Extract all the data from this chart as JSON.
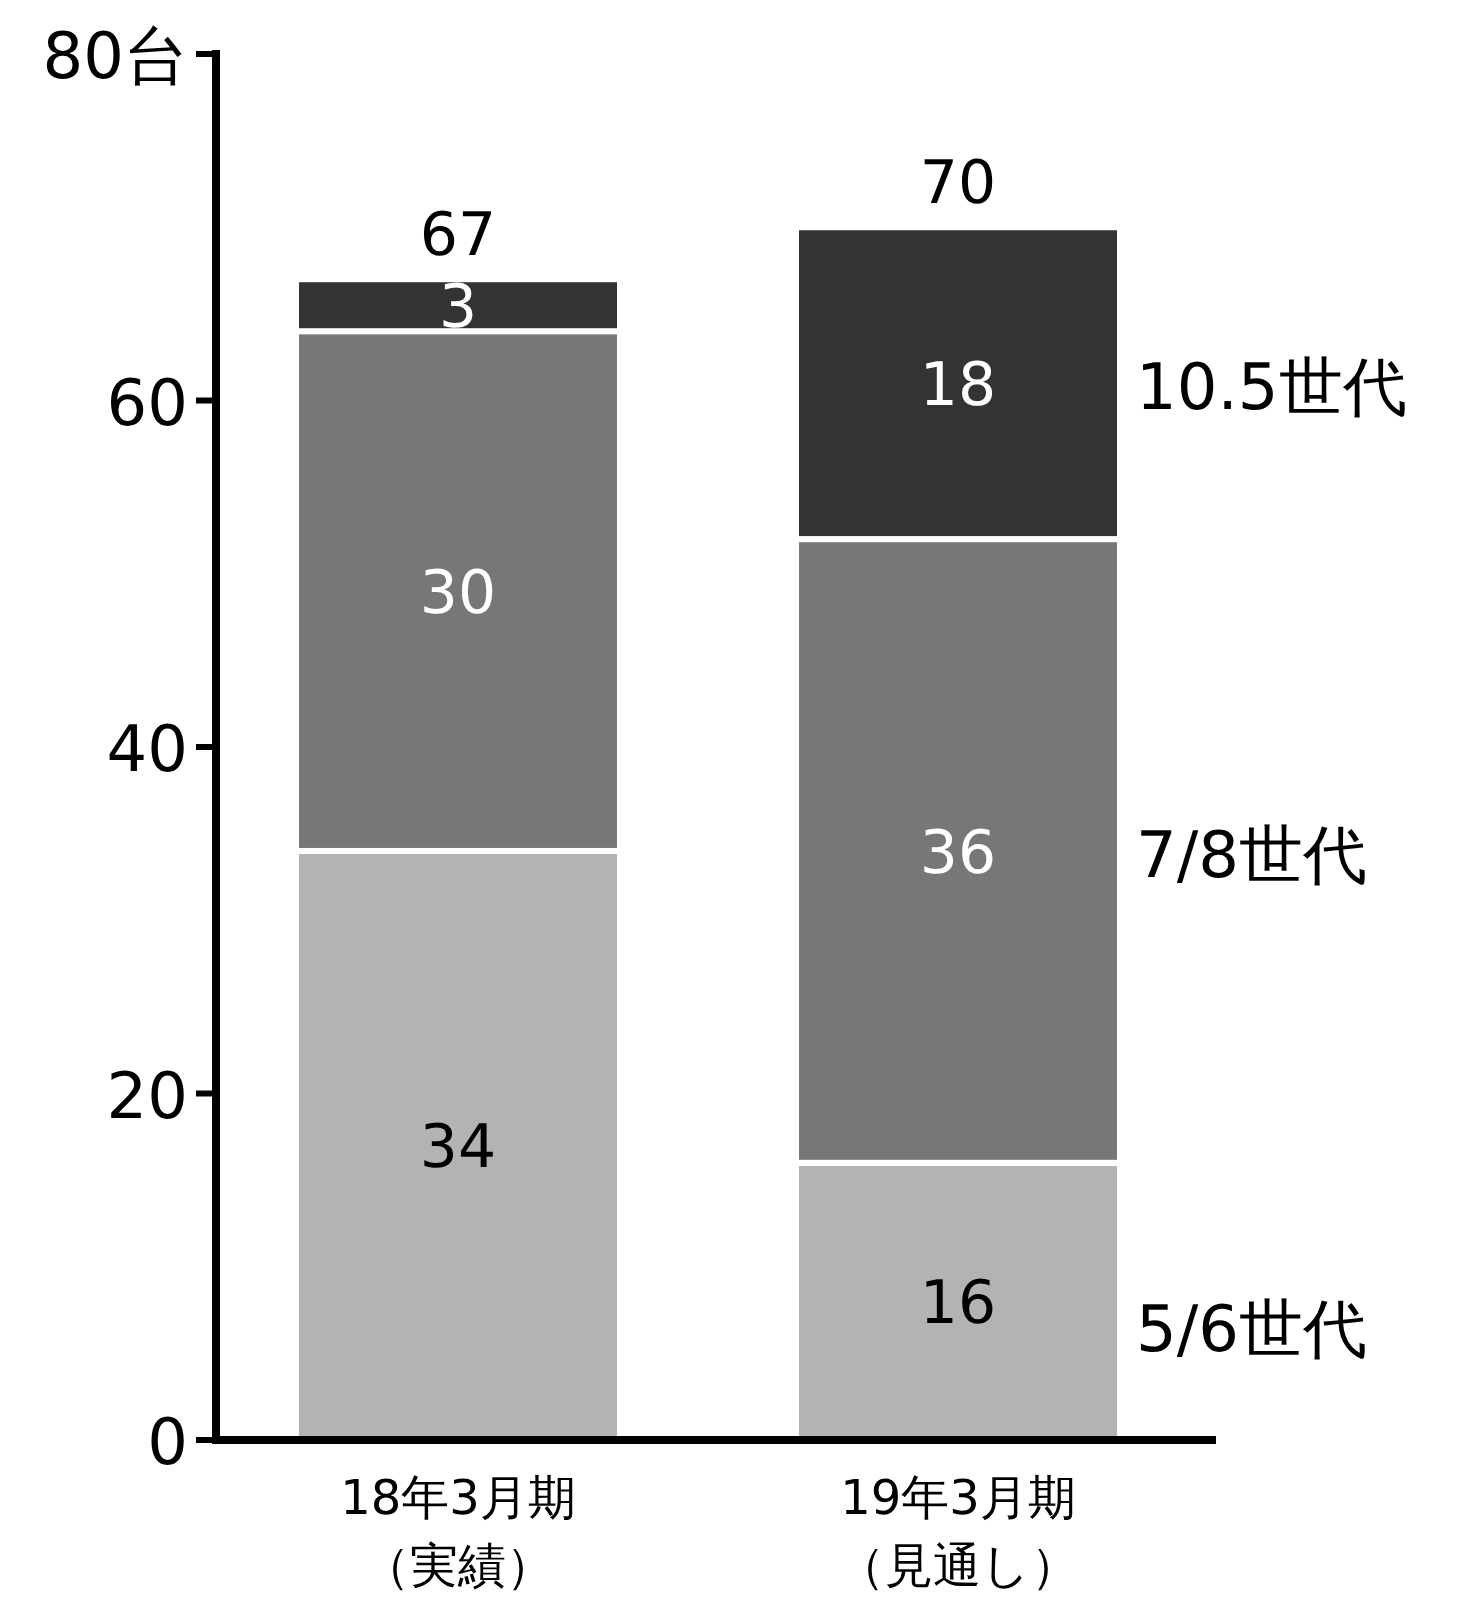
{
  "chart_data": {
    "type": "bar",
    "stacked": true,
    "categories": [
      "18年3月期（実績）",
      "19年3月期（見通し）"
    ],
    "series": [
      {
        "name": "5/6世代",
        "color": "#b3b3b3",
        "values": [
          34,
          16
        ]
      },
      {
        "name": "7/8世代",
        "color": "#777777",
        "values": [
          30,
          36
        ]
      },
      {
        "name": "10.5世代",
        "color": "#333333",
        "values": [
          3,
          18
        ]
      }
    ],
    "ylim": [
      0,
      80
    ],
    "yticks": [
      0,
      20,
      40,
      60,
      {
        "value": 80,
        "label": "80台"
      }
    ],
    "data_labels": true,
    "totals": [
      "67",
      "70"
    ]
  }
}
